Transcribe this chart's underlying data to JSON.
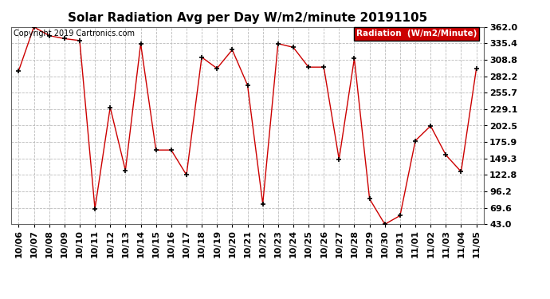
{
  "title": "Solar Radiation Avg per Day W/m2/minute 20191105",
  "copyright": "Copyright 2019 Cartronics.com",
  "legend_label": "Radiation  (W/m2/Minute)",
  "dates": [
    "10/06",
    "10/07",
    "10/08",
    "10/09",
    "10/10",
    "10/11",
    "10/12",
    "10/13",
    "10/14",
    "10/15",
    "10/16",
    "10/17",
    "10/18",
    "10/19",
    "10/20",
    "10/21",
    "10/22",
    "10/23",
    "10/24",
    "10/25",
    "10/26",
    "10/27",
    "10/28",
    "10/29",
    "10/30",
    "10/31",
    "11/01",
    "11/02",
    "11/03",
    "11/04",
    "11/05"
  ],
  "values": [
    291.0,
    362.0,
    348.0,
    343.0,
    340.0,
    68.0,
    232.0,
    130.0,
    335.0,
    163.0,
    163.0,
    122.8,
    313.0,
    295.0,
    325.0,
    268.0,
    76.0,
    335.0,
    329.0,
    297.0,
    297.0,
    148.0,
    311.0,
    84.0,
    43.0,
    57.0,
    178.0,
    202.0,
    155.0,
    128.0,
    295.0
  ],
  "ylim": [
    43.0,
    362.0
  ],
  "yticks": [
    43.0,
    69.6,
    96.2,
    122.8,
    149.3,
    175.9,
    202.5,
    229.1,
    255.7,
    282.2,
    308.8,
    335.4,
    362.0
  ],
  "line_color": "#cc0000",
  "marker_color": "#000000",
  "bg_color": "#ffffff",
  "grid_color": "#bbbbbb",
  "legend_bg": "#cc0000",
  "legend_text_color": "#ffffff",
  "title_fontsize": 11,
  "copyright_fontsize": 7,
  "tick_fontsize": 8
}
